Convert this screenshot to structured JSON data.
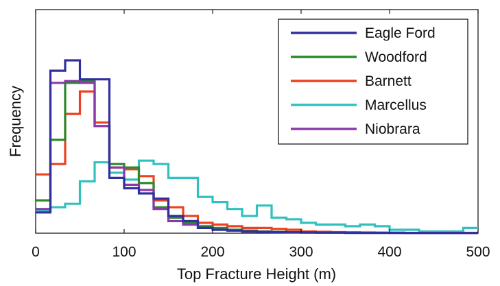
{
  "chart_data": {
    "type": "line",
    "subtype": "step-histogram",
    "xlabel": "Top Fracture Height  (m)",
    "ylabel": "Frequency",
    "xlim": [
      0,
      500
    ],
    "ylim": [
      0,
      1
    ],
    "x_ticks": [
      "0",
      "100",
      "200",
      "300",
      "400",
      "500"
    ],
    "grid": false,
    "legend_position": "top-right",
    "bin_edges": [
      0,
      16.67,
      33.33,
      50,
      66.67,
      83.33,
      100,
      116.67,
      133.33,
      150,
      166.67,
      183.33,
      200,
      216.67,
      233.33,
      250,
      266.67,
      283.33,
      300,
      316.67,
      333.33,
      350,
      366.67,
      383.33,
      400,
      416.67,
      433.33,
      450,
      466.67,
      483.33,
      500
    ],
    "series": [
      {
        "name": "Eagle Ford",
        "color": "#3030a0",
        "values": [
          0.12,
          0.94,
          1.0,
          0.89,
          0.89,
          0.32,
          0.26,
          0.23,
          0.2,
          0.1,
          0.07,
          0.03,
          0.02,
          0.015,
          0.01,
          0.008,
          0.006,
          0.005,
          0.004,
          0.003,
          0.003,
          0.002,
          0.002,
          0.002,
          0.002,
          0.001,
          0.001,
          0.001,
          0.001,
          0.001
        ]
      },
      {
        "name": "Woodford",
        "color": "#2a8a2a",
        "values": [
          0.19,
          0.54,
          0.87,
          0.88,
          0.62,
          0.4,
          0.38,
          0.29,
          0.15,
          0.09,
          0.06,
          0.04,
          0.03,
          0.02,
          0.015,
          0.01,
          0.008,
          0.006,
          0.005,
          0.004,
          0.003,
          0.003,
          0.002,
          0.002,
          0.002,
          0.001,
          0.001,
          0.001,
          0.001,
          0.001
        ]
      },
      {
        "name": "Barnett",
        "color": "#ee4020",
        "values": [
          0.34,
          0.4,
          0.69,
          0.82,
          0.64,
          0.38,
          0.37,
          0.33,
          0.19,
          0.15,
          0.1,
          0.06,
          0.05,
          0.04,
          0.03,
          0.03,
          0.025,
          0.02,
          0.01,
          0.008,
          0.006,
          0.005,
          0.004,
          0.003,
          0.003,
          0.002,
          0.002,
          0.002,
          0.002,
          0.002
        ]
      },
      {
        "name": "Marcellus",
        "color": "#30c0c0",
        "values": [
          0.13,
          0.15,
          0.17,
          0.3,
          0.41,
          0.35,
          0.31,
          0.42,
          0.4,
          0.32,
          0.32,
          0.21,
          0.18,
          0.14,
          0.1,
          0.16,
          0.09,
          0.08,
          0.06,
          0.05,
          0.05,
          0.04,
          0.05,
          0.04,
          0.02,
          0.02,
          0.01,
          0.01,
          0.01,
          0.03
        ]
      },
      {
        "name": "Niobrara",
        "color": "#8a3aa8",
        "values": [
          0.14,
          0.87,
          0.88,
          0.87,
          0.62,
          0.38,
          0.28,
          0.25,
          0.14,
          0.07,
          0.05,
          0.03,
          0.02,
          0.015,
          0.01,
          0.008,
          0.006,
          0.005,
          0.004,
          0.003,
          0.003,
          0.002,
          0.002,
          0.002,
          0.001,
          0.001,
          0.001,
          0.001,
          0.001,
          0.001
        ]
      }
    ]
  }
}
